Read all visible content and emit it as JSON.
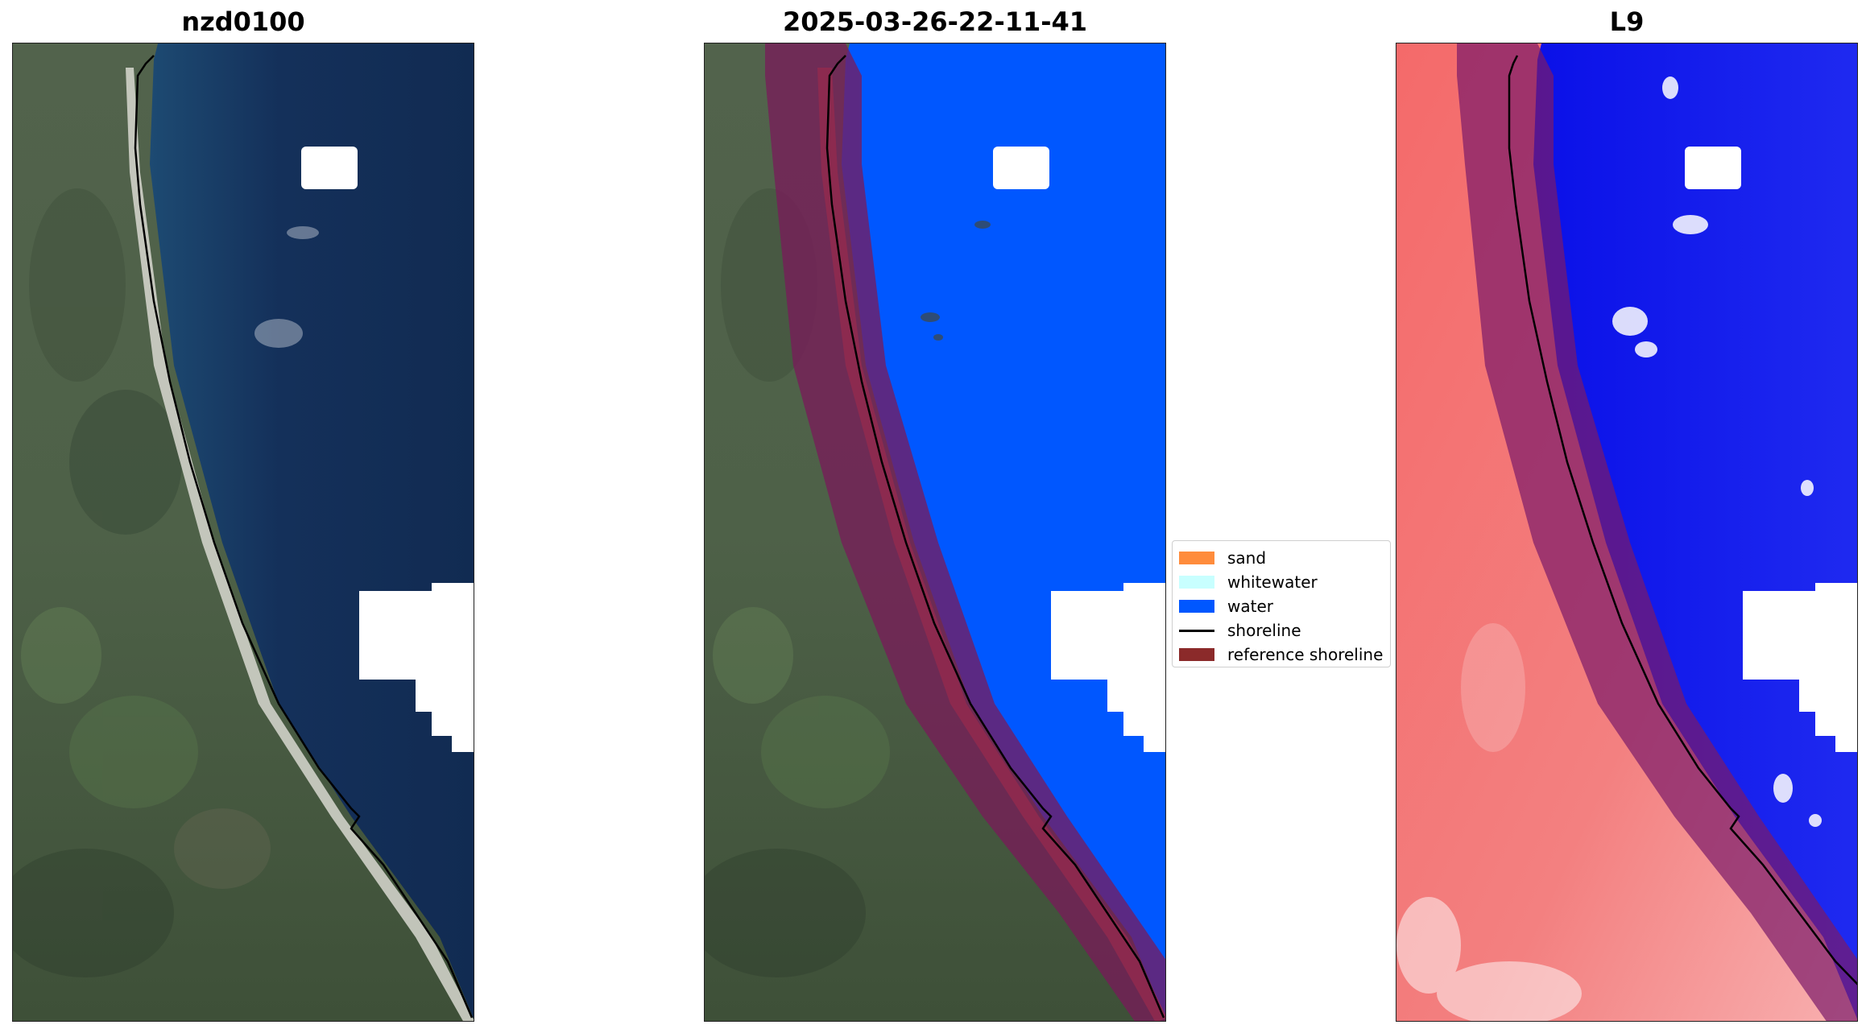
{
  "panels": [
    {
      "title": "nzd0100"
    },
    {
      "title": "2025-03-26-22-11-41"
    },
    {
      "title": "L9"
    }
  ],
  "legend": {
    "items": [
      {
        "label": "sand",
        "color": "#ff8c3c",
        "kind": "patch"
      },
      {
        "label": "whitewater",
        "color": "#c8ffff",
        "kind": "patch"
      },
      {
        "label": "water",
        "color": "#0057ff",
        "kind": "patch"
      },
      {
        "label": "shoreline",
        "color": "#000000",
        "kind": "line"
      },
      {
        "label": "reference shoreline",
        "color": "#8b1a1a",
        "kind": "patch"
      }
    ]
  },
  "colors": {
    "ocean_rgb": "#14305a",
    "land_rgb": "#4a5f45",
    "water_class": "#0057ff",
    "reference_band": "#7a1a3a",
    "index_land": "#f26a6a",
    "index_water": "#0a10f0",
    "cloud_mask": "#ffffff"
  }
}
